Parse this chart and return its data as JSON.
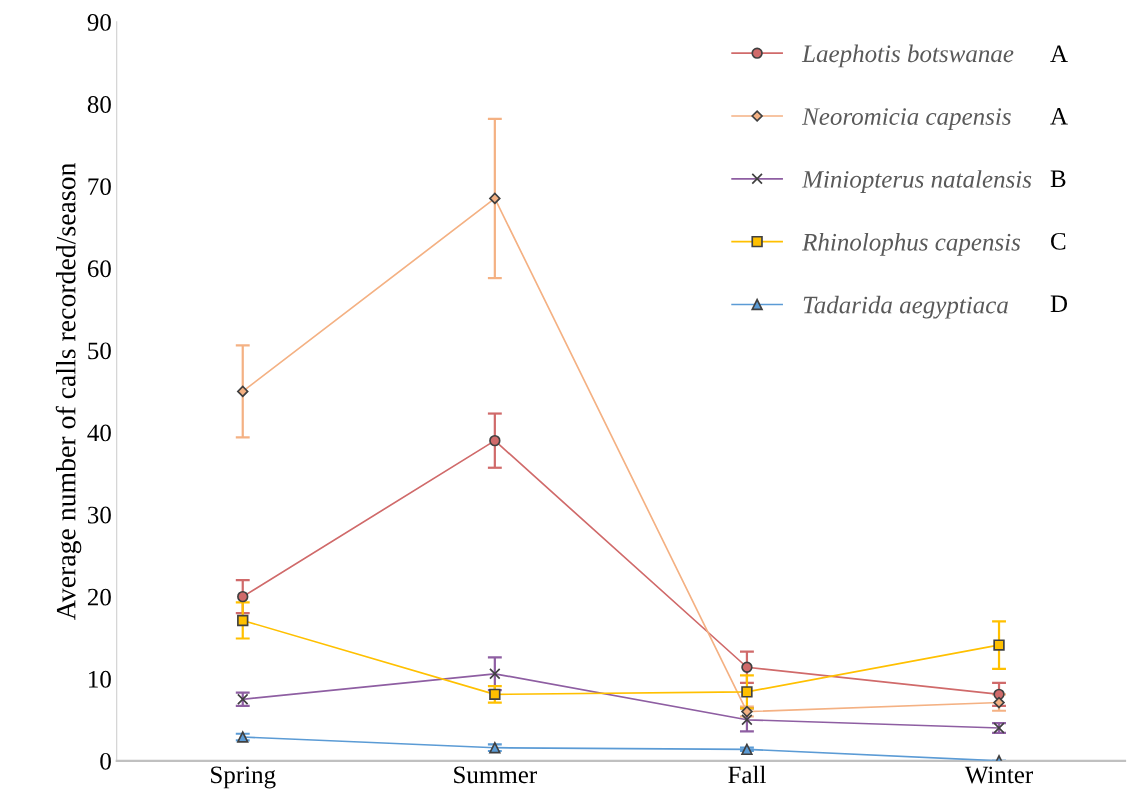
{
  "chart_data": {
    "type": "line",
    "ylabel": "Average number of calls recorded/season",
    "categories": [
      "Spring",
      "Summer",
      "Fall",
      "Winter"
    ],
    "series": [
      {
        "name": "Laephotis botswanae",
        "color": "#d06a6a",
        "marker": "circle",
        "values": [
          20,
          39,
          11.4,
          8.1
        ],
        "errors": [
          2,
          3.3,
          1.9,
          1.4
        ]
      },
      {
        "name": "Neoromicia capensis",
        "color": "#f4b183",
        "marker": "diamond",
        "values": [
          45,
          68.5,
          6.0,
          7.1
        ],
        "errors": [
          5.6,
          9.7,
          0.6,
          1.0
        ]
      },
      {
        "name": "Miniopterus natalensis",
        "color": "#8e5ea2",
        "marker": "cross",
        "values": [
          7.5,
          10.6,
          5.0,
          4.0
        ],
        "errors": [
          0.8,
          2.0,
          1.4,
          0.6
        ]
      },
      {
        "name": "Rhinolophus capensis",
        "color": "#ffc000",
        "marker": "square",
        "values": [
          17.1,
          8.1,
          8.4,
          14.1
        ],
        "errors": [
          2.2,
          1.0,
          2.0,
          2.9
        ]
      },
      {
        "name": "Tadarida aegyptiaca",
        "color": "#5b9bd5",
        "marker": "triangle",
        "values": [
          2.9,
          1.6,
          1.4,
          0
        ],
        "errors": [
          0.4,
          0.4,
          0.2,
          0
        ]
      }
    ],
    "annotations": [
      "A",
      "A",
      "B",
      "C",
      "D"
    ],
    "ylim": [
      0,
      90
    ],
    "yticks": [
      0,
      10,
      20,
      30,
      40,
      50,
      60,
      70,
      80,
      90
    ],
    "grid": false,
    "legend": "top right",
    "line_style": "solid"
  }
}
